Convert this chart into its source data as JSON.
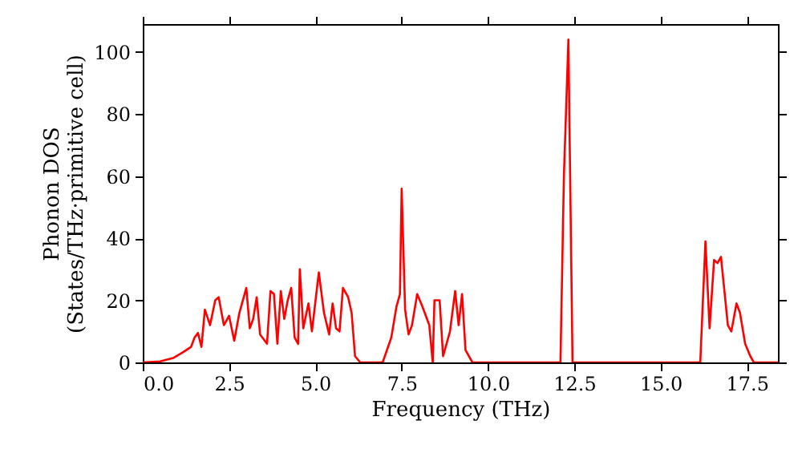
{
  "chart_data": {
    "type": "line",
    "xlabel": "Frequency (THz)",
    "ylabel": "Phonon DOS\n(States/THz·primitive cell)",
    "xlim": [
      0,
      18.4
    ],
    "ylim": [
      0,
      109
    ],
    "xticks": [
      {
        "value": 0,
        "label": "0.0"
      },
      {
        "value": 2.5,
        "label": "2.5"
      },
      {
        "value": 5,
        "label": "5.0"
      },
      {
        "value": 7.5,
        "label": "7.5"
      },
      {
        "value": 10,
        "label": "10.0"
      },
      {
        "value": 12.5,
        "label": "12.5"
      },
      {
        "value": 15,
        "label": "15.0"
      },
      {
        "value": 17.5,
        "label": "17.5"
      }
    ],
    "yticks": [
      0,
      20,
      40,
      60,
      80,
      100
    ],
    "grid": false,
    "marker": "none",
    "line_style": "solid",
    "series": [
      {
        "color": "#ff0000",
        "x": [
          0,
          0.5,
          0.9,
          1.2,
          1.4,
          1.5,
          1.6,
          1.7,
          1.8,
          1.95,
          2.1,
          2.2,
          2.35,
          2.5,
          2.65,
          2.8,
          3.0,
          3.1,
          3.2,
          3.3,
          3.4,
          3.6,
          3.7,
          3.8,
          3.9,
          4.0,
          4.1,
          4.2,
          4.3,
          4.4,
          4.5,
          4.55,
          4.65,
          4.8,
          4.9,
          5.1,
          5.25,
          5.4,
          5.5,
          5.6,
          5.7,
          5.8,
          5.95,
          6.05,
          6.15,
          6.3,
          6.95,
          7.2,
          7.35,
          7.45,
          7.5,
          7.6,
          7.7,
          7.8,
          7.95,
          8.1,
          8.3,
          8.4,
          8.45,
          8.6,
          8.7,
          8.9,
          9.05,
          9.15,
          9.25,
          9.35,
          9.55,
          12.1,
          12.2,
          12.33,
          12.45,
          16.15,
          16.3,
          16.42,
          16.55,
          16.65,
          16.75,
          16.95,
          17.05,
          17.2,
          17.3,
          17.45,
          17.6,
          17.7,
          18.4
        ],
        "values": [
          0,
          0.3,
          1.5,
          3.5,
          5,
          8,
          9.5,
          5,
          17,
          12,
          20,
          21,
          12,
          15,
          7,
          16,
          24,
          11,
          14,
          21,
          9,
          6,
          23,
          22,
          6,
          23,
          14,
          20,
          24,
          8,
          6,
          30,
          11,
          19,
          10,
          29,
          16,
          9,
          19,
          11,
          10,
          24,
          21,
          16,
          2,
          0,
          0,
          8,
          18,
          22,
          56,
          17,
          9,
          12,
          22,
          18,
          12,
          0,
          20,
          20,
          2,
          10,
          23,
          12,
          22,
          4,
          0,
          0,
          60,
          104,
          0,
          0,
          39,
          11,
          33,
          32,
          34,
          12,
          10,
          19,
          16,
          6,
          2,
          0,
          0
        ]
      }
    ]
  }
}
